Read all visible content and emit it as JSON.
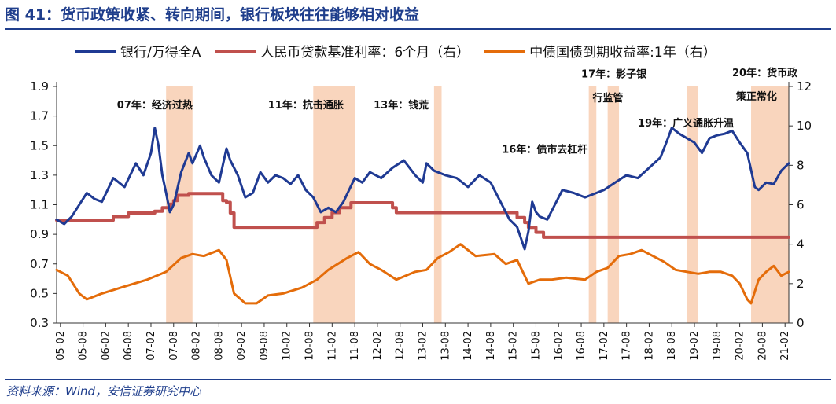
{
  "header": {
    "title": "图 41：货币政策收紧、转向期间，银行板块往往能够相对收益"
  },
  "legend": {
    "items": [
      {
        "label": "银行/万得全A",
        "color": "#1f3a93"
      },
      {
        "label": "人民币贷款基准利率：6个月（右）",
        "color": "#c0504d"
      },
      {
        "label": "中债国债到期收益率:1年（右）",
        "color": "#e46c0a"
      }
    ]
  },
  "footer": {
    "source": "资料来源：Wind，安信证券研究中心"
  },
  "chart_data": {
    "type": "line",
    "title": "图 41：货币政策收紧、转向期间，银行板块往往能够相对收益",
    "x_range": [
      "2005-01",
      "2021-03"
    ],
    "x_ticks": [
      "05-02",
      "05-08",
      "06-02",
      "06-08",
      "07-02",
      "07-08",
      "08-02",
      "08-08",
      "09-02",
      "09-08",
      "10-02",
      "10-08",
      "11-02",
      "11-08",
      "12-02",
      "12-08",
      "13-02",
      "13-08",
      "14-02",
      "14-08",
      "15-02",
      "15-08",
      "16-02",
      "16-08",
      "17-02",
      "17-08",
      "18-02",
      "18-08",
      "19-02",
      "19-08",
      "20-02",
      "20-08",
      "21-02"
    ],
    "y_left": {
      "min": 0.3,
      "max": 1.9,
      "ticks": [
        "0.3",
        "0.5",
        "0.7",
        "0.9",
        "1.1",
        "1.3",
        "1.5",
        "1.7",
        "1.9"
      ]
    },
    "y_right": {
      "min": 0,
      "max": 12,
      "ticks": [
        "0",
        "2",
        "4",
        "6",
        "8",
        "10",
        "12"
      ]
    },
    "series": [
      {
        "name": "银行/万得全A",
        "axis": "left",
        "color": "#1f3a93",
        "points": [
          [
            "2005-01",
            1.0
          ],
          [
            "2005-03",
            0.97
          ],
          [
            "2005-05",
            1.02
          ],
          [
            "2005-07",
            1.1
          ],
          [
            "2005-09",
            1.18
          ],
          [
            "2005-11",
            1.14
          ],
          [
            "2006-01",
            1.12
          ],
          [
            "2006-04",
            1.28
          ],
          [
            "2006-07",
            1.22
          ],
          [
            "2006-10",
            1.38
          ],
          [
            "2006-12",
            1.3
          ],
          [
            "2007-02",
            1.45
          ],
          [
            "2007-03",
            1.62
          ],
          [
            "2007-04",
            1.5
          ],
          [
            "2007-05",
            1.3
          ],
          [
            "2007-06",
            1.18
          ],
          [
            "2007-07",
            1.05
          ],
          [
            "2007-08",
            1.1
          ],
          [
            "2007-10",
            1.32
          ],
          [
            "2007-12",
            1.45
          ],
          [
            "2008-01",
            1.38
          ],
          [
            "2008-03",
            1.5
          ],
          [
            "2008-04",
            1.42
          ],
          [
            "2008-06",
            1.3
          ],
          [
            "2008-08",
            1.25
          ],
          [
            "2008-10",
            1.48
          ],
          [
            "2008-11",
            1.4
          ],
          [
            "2009-01",
            1.3
          ],
          [
            "2009-03",
            1.15
          ],
          [
            "2009-05",
            1.18
          ],
          [
            "2009-07",
            1.32
          ],
          [
            "2009-09",
            1.25
          ],
          [
            "2009-11",
            1.3
          ],
          [
            "2010-01",
            1.28
          ],
          [
            "2010-03",
            1.24
          ],
          [
            "2010-05",
            1.3
          ],
          [
            "2010-07",
            1.2
          ],
          [
            "2010-09",
            1.15
          ],
          [
            "2010-11",
            1.05
          ],
          [
            "2011-01",
            1.08
          ],
          [
            "2011-03",
            1.05
          ],
          [
            "2011-05",
            1.12
          ],
          [
            "2011-08",
            1.28
          ],
          [
            "2011-10",
            1.25
          ],
          [
            "2011-12",
            1.32
          ],
          [
            "2012-03",
            1.28
          ],
          [
            "2012-06",
            1.35
          ],
          [
            "2012-09",
            1.4
          ],
          [
            "2012-12",
            1.3
          ],
          [
            "2013-02",
            1.25
          ],
          [
            "2013-03",
            1.38
          ],
          [
            "2013-05",
            1.33
          ],
          [
            "2013-08",
            1.3
          ],
          [
            "2013-11",
            1.28
          ],
          [
            "2014-02",
            1.22
          ],
          [
            "2014-05",
            1.3
          ],
          [
            "2014-08",
            1.25
          ],
          [
            "2014-11",
            1.1
          ],
          [
            "2015-01",
            1.0
          ],
          [
            "2015-03",
            0.95
          ],
          [
            "2015-05",
            0.8
          ],
          [
            "2015-06",
            0.92
          ],
          [
            "2015-07",
            1.12
          ],
          [
            "2015-08",
            1.05
          ],
          [
            "2015-09",
            1.02
          ],
          [
            "2015-11",
            1.0
          ],
          [
            "2016-01",
            1.1
          ],
          [
            "2016-03",
            1.2
          ],
          [
            "2016-06",
            1.18
          ],
          [
            "2016-09",
            1.15
          ],
          [
            "2016-12",
            1.18
          ],
          [
            "2017-02",
            1.2
          ],
          [
            "2017-05",
            1.25
          ],
          [
            "2017-08",
            1.3
          ],
          [
            "2017-11",
            1.28
          ],
          [
            "2018-02",
            1.35
          ],
          [
            "2018-05",
            1.42
          ],
          [
            "2018-07",
            1.55
          ],
          [
            "2018-08",
            1.62
          ],
          [
            "2018-10",
            1.58
          ],
          [
            "2018-12",
            1.55
          ],
          [
            "2019-02",
            1.52
          ],
          [
            "2019-04",
            1.45
          ],
          [
            "2019-06",
            1.55
          ],
          [
            "2019-08",
            1.57
          ],
          [
            "2019-10",
            1.58
          ],
          [
            "2019-12",
            1.6
          ],
          [
            "2020-02",
            1.52
          ],
          [
            "2020-04",
            1.45
          ],
          [
            "2020-06",
            1.22
          ],
          [
            "2020-07",
            1.2
          ],
          [
            "2020-09",
            1.25
          ],
          [
            "2020-11",
            1.24
          ],
          [
            "2021-01",
            1.33
          ],
          [
            "2021-03",
            1.38
          ]
        ]
      },
      {
        "name": "人民币贷款基准利率：6个月（右）",
        "axis": "right",
        "color": "#c0504d",
        "points": [
          [
            "2005-01",
            5.22
          ],
          [
            "2006-04",
            5.4
          ],
          [
            "2006-08",
            5.58
          ],
          [
            "2007-03",
            5.67
          ],
          [
            "2007-05",
            5.85
          ],
          [
            "2007-07",
            6.03
          ],
          [
            "2007-08",
            6.21
          ],
          [
            "2007-09",
            6.48
          ],
          [
            "2007-12",
            6.57
          ],
          [
            "2008-09",
            6.21
          ],
          [
            "2008-10",
            6.12
          ],
          [
            "2008-11",
            5.58
          ],
          [
            "2008-12",
            4.86
          ],
          [
            "2010-10",
            5.1
          ],
          [
            "2010-12",
            5.35
          ],
          [
            "2011-02",
            5.6
          ],
          [
            "2011-04",
            5.85
          ],
          [
            "2011-07",
            6.1
          ],
          [
            "2012-06",
            5.85
          ],
          [
            "2012-07",
            5.6
          ],
          [
            "2014-11",
            5.6
          ],
          [
            "2015-03",
            5.35
          ],
          [
            "2015-05",
            5.1
          ],
          [
            "2015-06",
            4.85
          ],
          [
            "2015-08",
            4.6
          ],
          [
            "2015-10",
            4.35
          ],
          [
            "2021-03",
            4.35
          ]
        ]
      },
      {
        "name": "中债国债到期收益率:1年（右）",
        "axis": "right",
        "color": "#e46c0a",
        "points": [
          [
            "2005-01",
            2.7
          ],
          [
            "2005-04",
            2.4
          ],
          [
            "2005-07",
            1.5
          ],
          [
            "2005-09",
            1.2
          ],
          [
            "2006-01",
            1.5
          ],
          [
            "2006-06",
            1.8
          ],
          [
            "2007-01",
            2.2
          ],
          [
            "2007-06",
            2.6
          ],
          [
            "2007-10",
            3.3
          ],
          [
            "2008-01",
            3.5
          ],
          [
            "2008-04",
            3.4
          ],
          [
            "2008-08",
            3.7
          ],
          [
            "2008-10",
            3.2
          ],
          [
            "2008-12",
            1.5
          ],
          [
            "2009-03",
            1.0
          ],
          [
            "2009-06",
            1.0
          ],
          [
            "2009-09",
            1.4
          ],
          [
            "2010-01",
            1.5
          ],
          [
            "2010-06",
            1.8
          ],
          [
            "2010-10",
            2.2
          ],
          [
            "2011-01",
            2.7
          ],
          [
            "2011-06",
            3.3
          ],
          [
            "2011-09",
            3.6
          ],
          [
            "2011-12",
            3.0
          ],
          [
            "2012-03",
            2.7
          ],
          [
            "2012-07",
            2.2
          ],
          [
            "2012-12",
            2.6
          ],
          [
            "2013-03",
            2.7
          ],
          [
            "2013-06",
            3.3
          ],
          [
            "2013-09",
            3.6
          ],
          [
            "2013-12",
            4.0
          ],
          [
            "2014-04",
            3.4
          ],
          [
            "2014-09",
            3.5
          ],
          [
            "2014-12",
            3.0
          ],
          [
            "2015-03",
            3.2
          ],
          [
            "2015-06",
            2.0
          ],
          [
            "2015-09",
            2.2
          ],
          [
            "2015-12",
            2.2
          ],
          [
            "2016-04",
            2.3
          ],
          [
            "2016-09",
            2.2
          ],
          [
            "2016-12",
            2.6
          ],
          [
            "2017-03",
            2.8
          ],
          [
            "2017-06",
            3.4
          ],
          [
            "2017-09",
            3.5
          ],
          [
            "2017-12",
            3.7
          ],
          [
            "2018-03",
            3.4
          ],
          [
            "2018-06",
            3.1
          ],
          [
            "2018-09",
            2.7
          ],
          [
            "2018-12",
            2.6
          ],
          [
            "2019-03",
            2.5
          ],
          [
            "2019-06",
            2.6
          ],
          [
            "2019-09",
            2.6
          ],
          [
            "2019-12",
            2.4
          ],
          [
            "2020-02",
            2.0
          ],
          [
            "2020-04",
            1.2
          ],
          [
            "2020-05",
            1.0
          ],
          [
            "2020-07",
            2.2
          ],
          [
            "2020-09",
            2.6
          ],
          [
            "2020-11",
            2.9
          ],
          [
            "2021-01",
            2.4
          ],
          [
            "2021-03",
            2.6
          ]
        ]
      }
    ],
    "shaded_periods": [
      [
        "2007-06",
        "2008-01"
      ],
      [
        "2010-09",
        "2011-08"
      ],
      [
        "2013-05",
        "2013-07"
      ],
      [
        "2016-10",
        "2016-12"
      ],
      [
        "2017-03",
        "2017-06"
      ],
      [
        "2018-12",
        "2019-03"
      ],
      [
        "2020-05",
        "2021-03"
      ]
    ],
    "annotations": [
      {
        "text": "07年：经济过热",
        "x": "2006-05",
        "y": 1.75
      },
      {
        "text": "11年：抗击通胀",
        "x": "2009-09",
        "y": 1.75
      },
      {
        "text": "13年：钱荒",
        "x": "2012-01",
        "y": 1.75
      },
      {
        "text": "16年：债市去杠杆",
        "x": "2014-11",
        "y": 1.45
      },
      {
        "text": "17年：影子银",
        "x": "2016-08",
        "y": 1.96
      },
      {
        "text": "行监管",
        "x": "2016-11",
        "y": 1.8
      },
      {
        "text": "19年：广义通胀升温",
        "x": "2017-11",
        "y": 1.63
      },
      {
        "text": "20年：货币政",
        "x": "2019-12",
        "y": 1.97
      },
      {
        "text": "策正常化",
        "x": "2020-01",
        "y": 1.81
      }
    ]
  }
}
